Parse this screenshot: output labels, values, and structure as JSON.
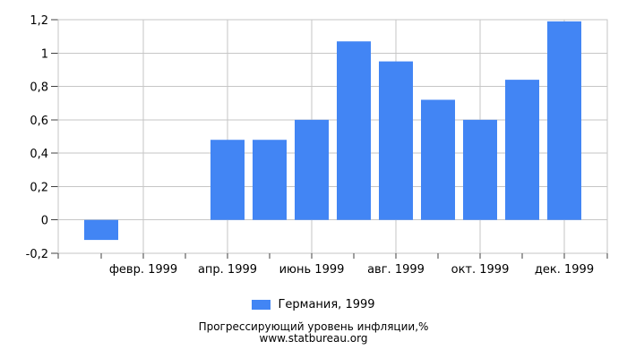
{
  "chart_data": {
    "type": "bar",
    "title": "Прогрессирующий уровень инфляции,%",
    "source": "www.statbureau.org",
    "legend": "Германия, 1999",
    "bar_color": "#4285F4",
    "months_count": 12,
    "values": [
      -0.12,
      0,
      0,
      0.48,
      0.48,
      0.6,
      1.07,
      0.95,
      0.72,
      0.6,
      0.84,
      1.19
    ],
    "x_tick_labels": [
      "февр. 1999",
      "апр. 1999",
      "июнь 1999",
      "авг. 1999",
      "окт. 1999",
      "дек. 1999"
    ],
    "x_tick_month_indices": [
      1,
      3,
      5,
      7,
      9,
      11
    ],
    "y_ticks": {
      "values": [
        1.2,
        1,
        0.8,
        0.6,
        0.4,
        0.2,
        0,
        -0.2
      ],
      "labels": [
        "1,2",
        "1",
        "0,8",
        "0,6",
        "0,4",
        "0,2",
        "0",
        "-0,2"
      ]
    },
    "ylim": [
      -0.2,
      1.2
    ],
    "grid": true,
    "legend_position": "bottom"
  },
  "colors": {
    "background": "#ffffff",
    "grid": "#c6c6c6",
    "axis_tick": "#404040",
    "text": "#000000"
  }
}
